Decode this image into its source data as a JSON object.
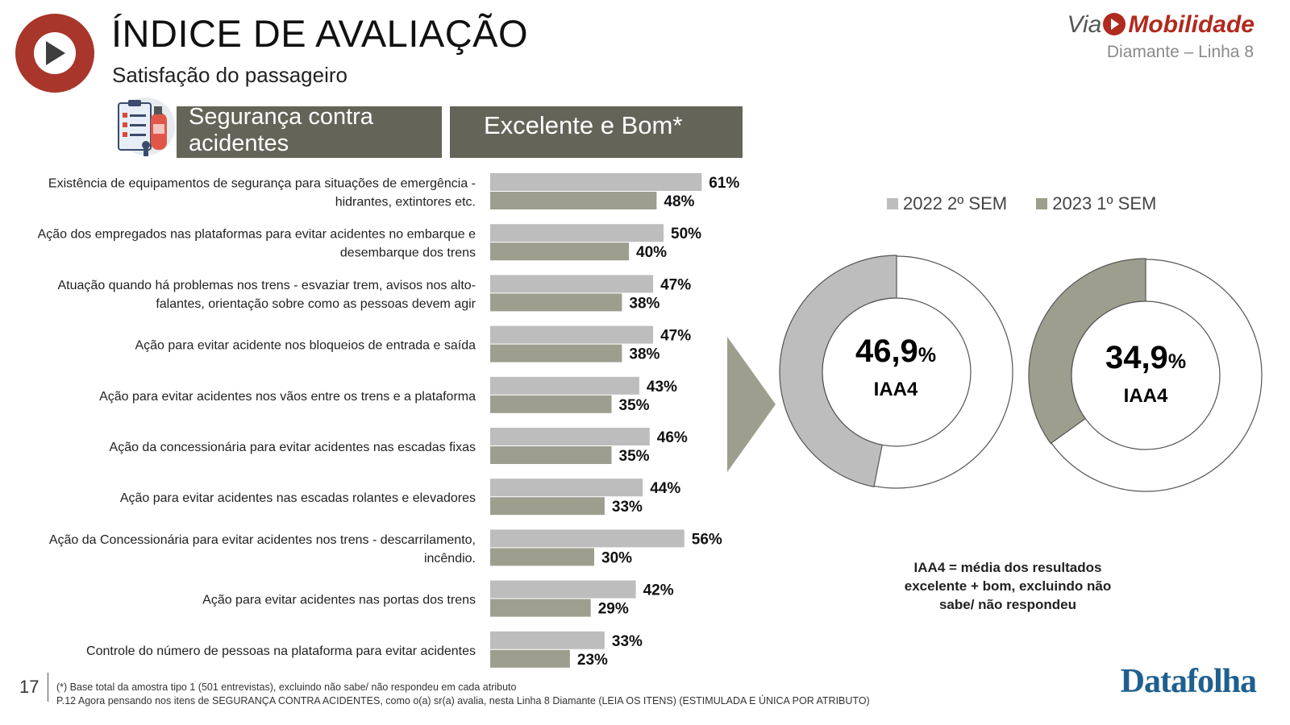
{
  "header": {
    "title": "ÍNDICE DE AVALIAÇÃO",
    "subtitle": "Satisfação do passageiro",
    "brand_via": "Via",
    "brand_mob": "Mobilidade",
    "line_name": "Diamante – Linha 8"
  },
  "section": {
    "category": "Segurança contra acidentes",
    "metric": "Excelente e Bom*"
  },
  "colors": {
    "accent_red": "#a8362b",
    "header_box": "#646459",
    "series_2022": "#bdbdbd",
    "series_2023": "#9e9e8e",
    "datafolha_blue": "#1f5f8f"
  },
  "chart_data": [
    {
      "type": "bar",
      "orientation": "horizontal",
      "categories": [
        "Existência de equipamentos de segurança para situações de emergência - hidrantes, extintores etc.",
        "Ação dos empregados nas plataformas para evitar acidentes no embarque e desembarque dos trens",
        "Atuação quando há problemas nos trens - esvaziar trem, avisos nos alto-falantes, orientação sobre como as pessoas devem agir",
        "Ação para evitar acidente nos bloqueios de entrada e saída",
        "Ação para evitar acidentes nos vãos entre os trens e a plataforma",
        "Ação da concessionária para evitar acidentes nas escadas fixas",
        "Ação para evitar acidentes nas escadas rolantes e elevadores",
        "Ação da Concessionária para evitar acidentes nos trens - descarrilamento, incêndio.",
        "Ação para evitar acidentes nas portas dos trens",
        "Controle do número de pessoas na plataforma para evitar acidentes"
      ],
      "category_lines": [
        [
          "Existência de equipamentos de segurança para situações de emergência -",
          "hidrantes, extintores etc."
        ],
        [
          "Ação dos empregados nas plataformas para evitar acidentes no embarque e",
          "desembarque dos trens"
        ],
        [
          "Atuação quando há problemas nos trens - esvaziar trem, avisos nos alto-",
          "falantes, orientação sobre como as pessoas devem agir"
        ],
        [
          "Ação para evitar acidente nos bloqueios de entrada e saída"
        ],
        [
          "Ação para evitar acidentes nos vãos entre os trens e a plataforma"
        ],
        [
          "Ação da concessionária para evitar acidentes nas escadas fixas"
        ],
        [
          "Ação para evitar acidentes nas escadas rolantes e elevadores"
        ],
        [
          "Ação da Concessionária para evitar acidentes nos trens - descarrilamento,",
          "incêndio."
        ],
        [
          "Ação para evitar acidentes nas portas dos trens"
        ],
        [
          "Controle do número de pessoas na plataforma para evitar acidentes"
        ]
      ],
      "series": [
        {
          "name": "2022 2º SEM",
          "color": "#bdbdbd",
          "values": [
            61,
            50,
            47,
            47,
            43,
            46,
            44,
            56,
            42,
            33
          ]
        },
        {
          "name": "2023 1º SEM",
          "color": "#9e9e8e",
          "values": [
            48,
            40,
            38,
            38,
            35,
            35,
            33,
            30,
            29,
            23
          ]
        }
      ],
      "value_suffix": "%",
      "xlim": [
        0,
        100
      ],
      "grid": false,
      "legend": "right"
    },
    {
      "type": "pie",
      "variant": "donut",
      "series_name": "2022 2º SEM",
      "value": 46.9,
      "value_label": "46,9",
      "unit": "%",
      "label": "IAA4",
      "color": "#bdbdbd"
    },
    {
      "type": "pie",
      "variant": "donut",
      "series_name": "2023 1º SEM",
      "value": 34.9,
      "value_label": "34,9",
      "unit": "%",
      "label": "IAA4",
      "color": "#9e9e8e"
    }
  ],
  "legend": {
    "items": [
      {
        "label": "2022 2º SEM",
        "color": "#bdbdbd"
      },
      {
        "label": "2023 1º SEM",
        "color": "#9e9e8e"
      }
    ]
  },
  "note": {
    "iaa": "IAA4 = média dos resultados excelente + bom, excluindo não sabe/ não respondeu"
  },
  "footer": {
    "page_number": "17",
    "footnote_1": "(*) Base total da amostra tipo 1 (501 entrevistas), excluindo não sabe/ não respondeu em cada atributo",
    "footnote_2": "P.12 Agora pensando nos itens de SEGURANÇA CONTRA ACIDENTES, como o(a) sr(a) avalia, nesta Linha 8 Diamante (LEIA OS ITENS) (ESTIMULADA E ÚNICA POR ATRIBUTO)",
    "source_logo": "Datafolha"
  }
}
